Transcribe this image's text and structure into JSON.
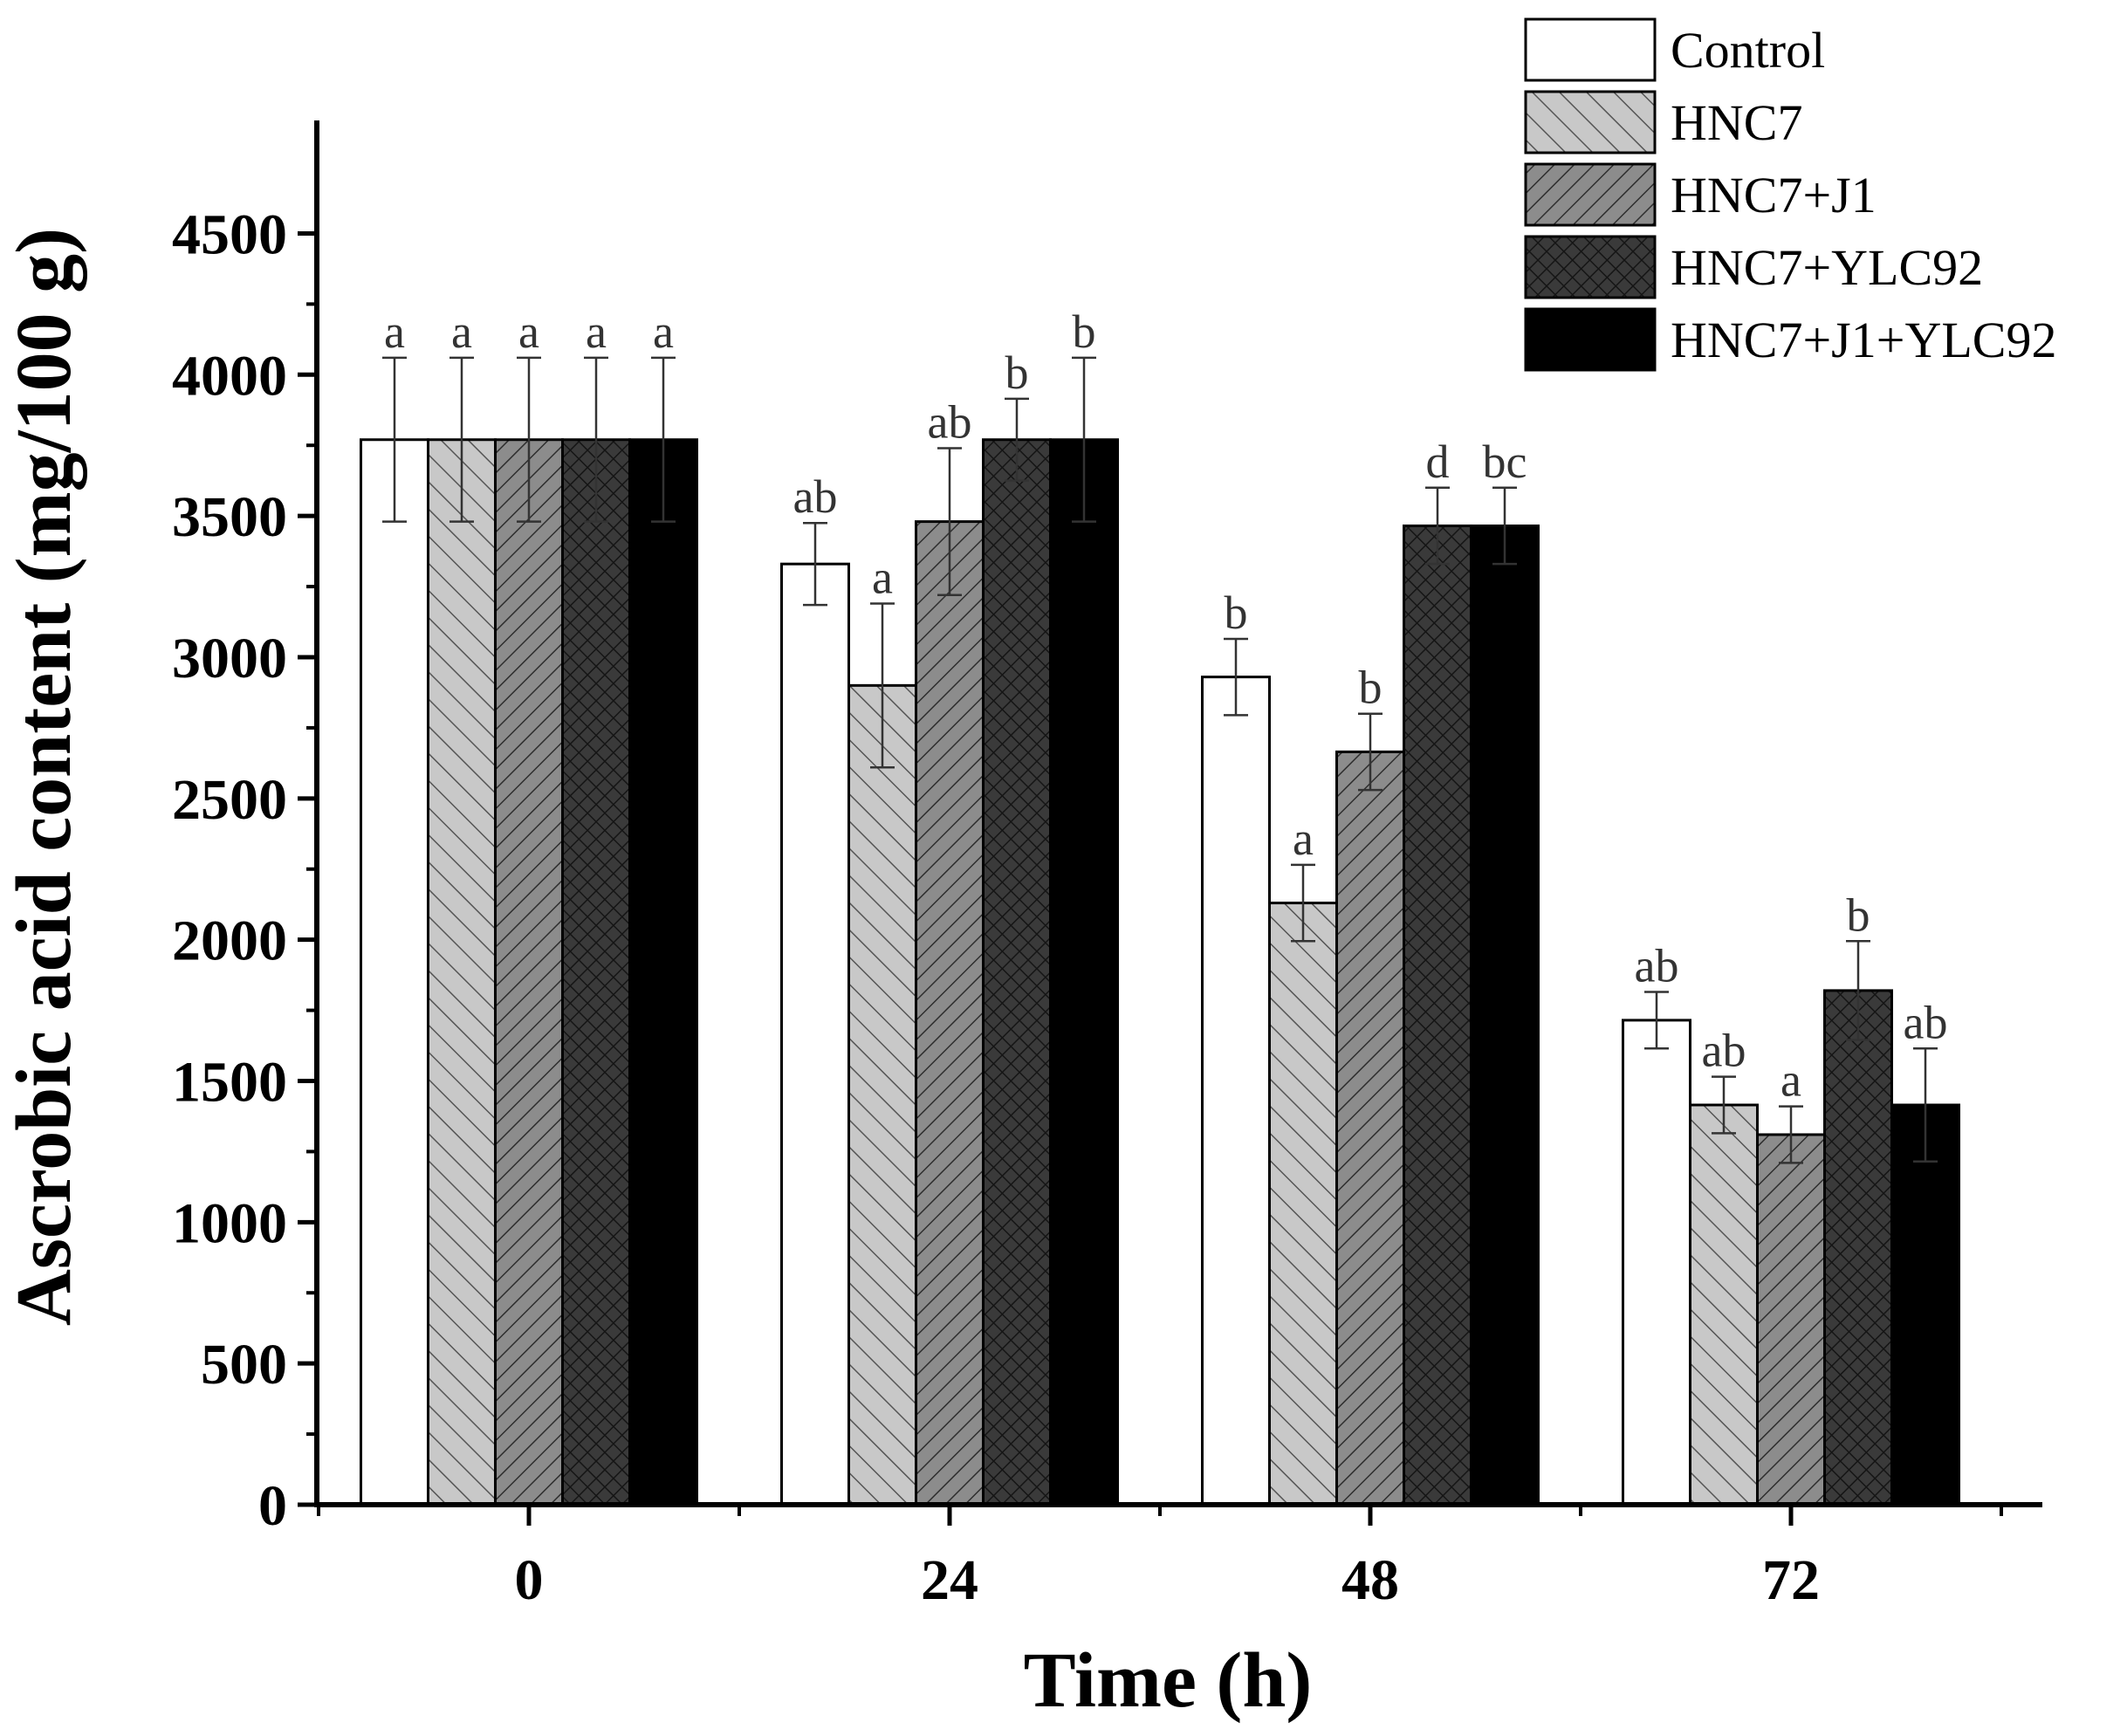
{
  "chart_data": {
    "type": "bar",
    "title": "",
    "xlabel": "Time (h)",
    "ylabel": "Ascrobic acid content (mg/100 g)",
    "ylim": [
      0,
      4900
    ],
    "yticks": [
      0,
      500,
      1000,
      1500,
      2000,
      2500,
      3000,
      3500,
      4000,
      4500
    ],
    "categories": [
      "0",
      "24",
      "48",
      "72"
    ],
    "legend_position": "top-right",
    "grid": false,
    "series": [
      {
        "name": "Control",
        "pattern": "none",
        "color": "#ffffff",
        "values": [
          3770,
          3330,
          2930,
          1715
        ],
        "errors": [
          290,
          145,
          135,
          100
        ],
        "letters": [
          "a",
          "ab",
          "b",
          "ab"
        ]
      },
      {
        "name": "HNC7",
        "pattern": "diagonal-up",
        "color": "#c8c8c8",
        "values": [
          3770,
          2900,
          2130,
          1415
        ],
        "errors": [
          290,
          290,
          135,
          100
        ],
        "letters": [
          "a",
          "a",
          "a",
          "ab"
        ]
      },
      {
        "name": "HNC7+J1",
        "pattern": "diagonal-down",
        "color": "#8c8c8c",
        "values": [
          3770,
          3480,
          2665,
          1310
        ],
        "errors": [
          290,
          260,
          135,
          100
        ],
        "letters": [
          "a",
          "ab",
          "b",
          "a"
        ]
      },
      {
        "name": "HNC7+YLC92",
        "pattern": "crosshatch",
        "color": "#3a3a3a",
        "values": [
          3770,
          3770,
          3465,
          1820
        ],
        "errors": [
          290,
          145,
          135,
          175
        ],
        "letters": [
          "a",
          "b",
          "d",
          "b"
        ]
      },
      {
        "name": "HNC7+J1+YLC92",
        "pattern": "solid",
        "color": "#000000",
        "values": [
          3770,
          3770,
          3465,
          1415
        ],
        "errors": [
          290,
          290,
          135,
          200
        ],
        "letters": [
          "a",
          "b",
          "bc",
          "ab"
        ]
      }
    ]
  }
}
